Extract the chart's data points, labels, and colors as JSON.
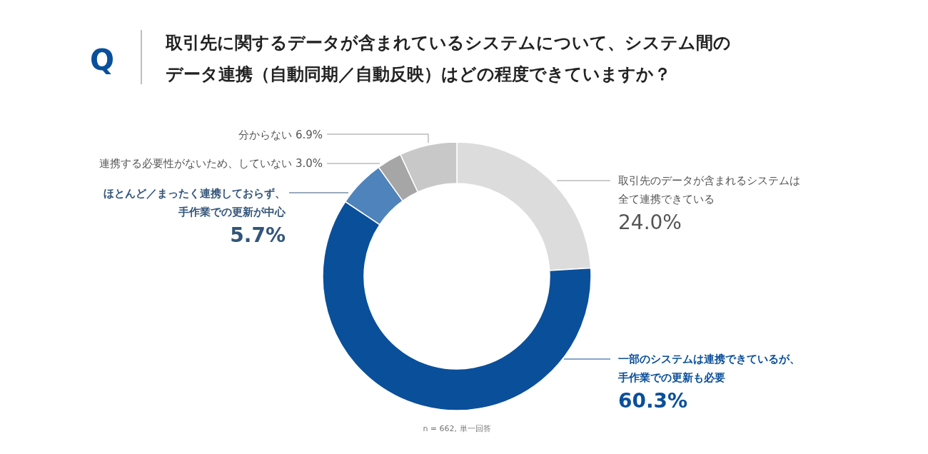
{
  "chart_data": {
    "type": "donut",
    "title": "取引先に関するデータが含まれているシステムについて、システム間のデータ連携（自動同期／自動反映）はどの程度できていますか？",
    "categories": [
      "取引先のデータが含まれるシステムは全て連携できている",
      "一部のシステムは連携できているが、手作業での更新も必要",
      "ほとんど／まったく連携しておらず、手作業での更新が中心",
      "連携する必要性がないため、していない",
      "分からない"
    ],
    "values": [
      24.0,
      60.3,
      5.7,
      3.0,
      6.9
    ],
    "value_labels": [
      "24.0%",
      "60.3%",
      "5.7%",
      "3.0%",
      "6.9%"
    ],
    "colors": [
      "#dcdcdc",
      "#0a4f9a",
      "#4f83bb",
      "#a6a6a6",
      "#c8c8c8"
    ],
    "annotations": [
      "Q",
      "n = 662, 単一回答"
    ]
  }
}
